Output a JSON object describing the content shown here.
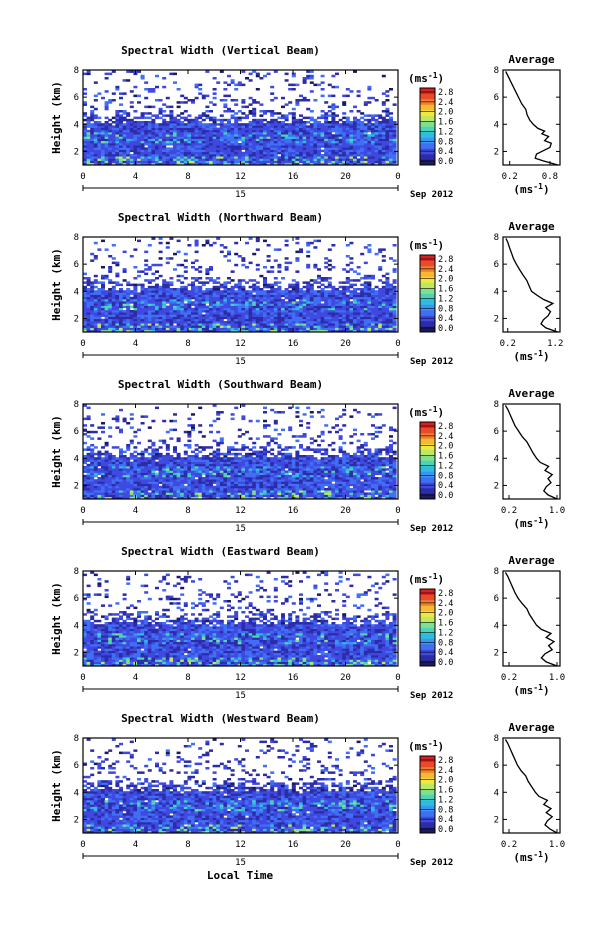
{
  "figure": {
    "xlabel_bottom": "Local Time"
  },
  "colorbar": {
    "unit": "(ms",
    "unit_sup": "-1",
    "ticks": [
      "0.0",
      "0.4",
      "0.8",
      "1.2",
      "1.6",
      "2.0",
      "2.4",
      "2.8"
    ],
    "colors": [
      "#1a1a60",
      "#2c2ca8",
      "#3f49e0",
      "#3f6ff5",
      "#3b96f2",
      "#2cbde0",
      "#4fd3b8",
      "#80e090",
      "#bde860",
      "#f0e840",
      "#f8b830",
      "#f08030",
      "#e84a2a",
      "#d82020"
    ]
  },
  "chart_data": [
    {
      "type": "heatmap",
      "title": "Spectral Width (Vertical Beam)",
      "ylabel": "Height (km)",
      "x_ticks": [
        "0",
        "4",
        "8",
        "12",
        "16",
        "20",
        "0"
      ],
      "y_ticks": [
        "2",
        "4",
        "6",
        "8"
      ],
      "xlim": [
        0,
        24
      ],
      "ylim": [
        1,
        8
      ],
      "date_day": "15",
      "date_label": "Sep 2012",
      "avg": {
        "title": "Average",
        "x_ticks": [
          "0.2",
          "0.8"
        ],
        "xlim": [
          0.1,
          0.95
        ],
        "xlabel": "(ms",
        "xlabel_sup": "-1",
        "y_ticks": [
          "2",
          "4",
          "6",
          "8"
        ],
        "profile": [
          [
            0.92,
            1.0
          ],
          [
            0.7,
            1.3
          ],
          [
            0.58,
            1.5
          ],
          [
            0.6,
            1.8
          ],
          [
            0.72,
            2.1
          ],
          [
            0.8,
            2.3
          ],
          [
            0.82,
            2.6
          ],
          [
            0.72,
            2.8
          ],
          [
            0.78,
            3.1
          ],
          [
            0.68,
            3.3
          ],
          [
            0.72,
            3.5
          ],
          [
            0.62,
            3.7
          ],
          [
            0.55,
            4.0
          ],
          [
            0.5,
            4.3
          ],
          [
            0.46,
            4.7
          ],
          [
            0.44,
            5.1
          ],
          [
            0.38,
            5.5
          ],
          [
            0.34,
            5.9
          ],
          [
            0.3,
            6.3
          ],
          [
            0.26,
            6.7
          ],
          [
            0.22,
            7.1
          ],
          [
            0.18,
            7.5
          ],
          [
            0.14,
            7.9
          ]
        ]
      }
    },
    {
      "type": "heatmap",
      "title": "Spectral Width (Northward Beam)",
      "ylabel": "Height (km)",
      "x_ticks": [
        "0",
        "4",
        "8",
        "12",
        "16",
        "20",
        "0"
      ],
      "y_ticks": [
        "2",
        "4",
        "6",
        "8"
      ],
      "xlim": [
        0,
        24
      ],
      "ylim": [
        1,
        8
      ],
      "date_day": "15",
      "date_label": "Sep 2012",
      "avg": {
        "title": "Average",
        "x_ticks": [
          "0.2",
          "1.2"
        ],
        "xlim": [
          0.1,
          1.3
        ],
        "xlabel": "(ms",
        "xlabel_sup": "-1",
        "y_ticks": [
          "2",
          "4",
          "6",
          "8"
        ],
        "profile": [
          [
            1.25,
            1.0
          ],
          [
            1.0,
            1.3
          ],
          [
            0.9,
            1.6
          ],
          [
            0.95,
            1.9
          ],
          [
            1.05,
            2.2
          ],
          [
            1.1,
            2.5
          ],
          [
            1.0,
            2.8
          ],
          [
            1.15,
            3.1
          ],
          [
            0.95,
            3.4
          ],
          [
            0.82,
            3.7
          ],
          [
            0.7,
            4.0
          ],
          [
            0.65,
            4.4
          ],
          [
            0.6,
            4.8
          ],
          [
            0.52,
            5.2
          ],
          [
            0.45,
            5.6
          ],
          [
            0.38,
            6.0
          ],
          [
            0.32,
            6.4
          ],
          [
            0.28,
            6.8
          ],
          [
            0.24,
            7.2
          ],
          [
            0.2,
            7.6
          ],
          [
            0.16,
            7.9
          ]
        ]
      }
    },
    {
      "type": "heatmap",
      "title": "Spectral Width (Southward Beam)",
      "ylabel": "Height (km)",
      "x_ticks": [
        "0",
        "4",
        "8",
        "12",
        "16",
        "20",
        "0"
      ],
      "y_ticks": [
        "2",
        "4",
        "6",
        "8"
      ],
      "xlim": [
        0,
        24
      ],
      "ylim": [
        1,
        8
      ],
      "date_day": "15",
      "date_label": "Sep 2012",
      "avg": {
        "title": "Average",
        "x_ticks": [
          "0.2",
          "1.0"
        ],
        "xlim": [
          0.1,
          1.05
        ],
        "xlabel": "(ms",
        "xlabel_sup": "-1",
        "y_ticks": [
          "2",
          "4",
          "6",
          "8"
        ],
        "profile": [
          [
            1.0,
            1.0
          ],
          [
            0.85,
            1.3
          ],
          [
            0.78,
            1.6
          ],
          [
            0.82,
            1.9
          ],
          [
            0.9,
            2.2
          ],
          [
            0.85,
            2.5
          ],
          [
            0.92,
            2.8
          ],
          [
            0.8,
            3.1
          ],
          [
            0.86,
            3.4
          ],
          [
            0.72,
            3.7
          ],
          [
            0.66,
            4.0
          ],
          [
            0.6,
            4.4
          ],
          [
            0.55,
            4.8
          ],
          [
            0.5,
            5.2
          ],
          [
            0.42,
            5.6
          ],
          [
            0.36,
            6.0
          ],
          [
            0.3,
            6.4
          ],
          [
            0.26,
            6.8
          ],
          [
            0.22,
            7.2
          ],
          [
            0.18,
            7.6
          ],
          [
            0.14,
            7.9
          ]
        ]
      }
    },
    {
      "type": "heatmap",
      "title": "Spectral Width (Eastward Beam)",
      "ylabel": "Height (km)",
      "x_ticks": [
        "0",
        "4",
        "8",
        "12",
        "16",
        "20",
        "0"
      ],
      "y_ticks": [
        "2",
        "4",
        "6",
        "8"
      ],
      "xlim": [
        0,
        24
      ],
      "ylim": [
        1,
        8
      ],
      "date_day": "15",
      "date_label": "Sep 2012",
      "avg": {
        "title": "Average",
        "x_ticks": [
          "0.2",
          "1.0"
        ],
        "xlim": [
          0.1,
          1.05
        ],
        "xlabel": "(ms",
        "xlabel_sup": "-1",
        "y_ticks": [
          "2",
          "4",
          "6",
          "8"
        ],
        "profile": [
          [
            1.0,
            1.0
          ],
          [
            0.82,
            1.3
          ],
          [
            0.74,
            1.6
          ],
          [
            0.8,
            1.9
          ],
          [
            0.92,
            2.2
          ],
          [
            0.86,
            2.5
          ],
          [
            0.95,
            2.8
          ],
          [
            0.82,
            3.1
          ],
          [
            0.9,
            3.4
          ],
          [
            0.74,
            3.7
          ],
          [
            0.66,
            4.0
          ],
          [
            0.6,
            4.4
          ],
          [
            0.54,
            4.8
          ],
          [
            0.5,
            5.2
          ],
          [
            0.42,
            5.6
          ],
          [
            0.35,
            6.0
          ],
          [
            0.3,
            6.4
          ],
          [
            0.26,
            6.8
          ],
          [
            0.22,
            7.2
          ],
          [
            0.18,
            7.6
          ],
          [
            0.14,
            7.9
          ]
        ]
      }
    },
    {
      "type": "heatmap",
      "title": "Spectral Width (Westward Beam)",
      "ylabel": "Height (km)",
      "x_ticks": [
        "0",
        "4",
        "8",
        "12",
        "16",
        "20",
        "0"
      ],
      "y_ticks": [
        "2",
        "4",
        "6",
        "8"
      ],
      "xlim": [
        0,
        24
      ],
      "ylim": [
        1,
        8
      ],
      "date_day": "15",
      "date_label": "Sep 2012",
      "avg": {
        "title": "Average",
        "x_ticks": [
          "0.2",
          "1.0"
        ],
        "xlim": [
          0.1,
          1.05
        ],
        "xlabel": "(ms",
        "xlabel_sup": "-1",
        "y_ticks": [
          "2",
          "4",
          "6",
          "8"
        ],
        "profile": [
          [
            1.0,
            1.0
          ],
          [
            0.88,
            1.3
          ],
          [
            0.8,
            1.6
          ],
          [
            0.84,
            1.9
          ],
          [
            0.92,
            2.2
          ],
          [
            0.82,
            2.5
          ],
          [
            0.9,
            2.8
          ],
          [
            0.78,
            3.1
          ],
          [
            0.84,
            3.4
          ],
          [
            0.7,
            3.7
          ],
          [
            0.64,
            4.0
          ],
          [
            0.58,
            4.4
          ],
          [
            0.52,
            4.8
          ],
          [
            0.48,
            5.2
          ],
          [
            0.4,
            5.6
          ],
          [
            0.34,
            6.0
          ],
          [
            0.3,
            6.4
          ],
          [
            0.26,
            6.8
          ],
          [
            0.22,
            7.2
          ],
          [
            0.18,
            7.6
          ],
          [
            0.14,
            7.9
          ]
        ]
      }
    }
  ]
}
